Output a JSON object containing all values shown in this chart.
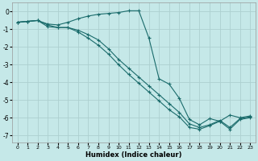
{
  "xlabel": "Humidex (Indice chaleur)",
  "bg_color": "#c5e8e8",
  "grid_color": "#add0d0",
  "line_color": "#1a6b6b",
  "xlim": [
    -0.5,
    23.5
  ],
  "ylim": [
    -7.4,
    0.5
  ],
  "xticks": [
    0,
    1,
    2,
    3,
    4,
    5,
    6,
    7,
    8,
    9,
    10,
    11,
    12,
    13,
    14,
    15,
    16,
    17,
    18,
    19,
    20,
    21,
    22,
    23
  ],
  "yticks": [
    0,
    -1,
    -2,
    -3,
    -4,
    -5,
    -6,
    -7
  ],
  "line1_x": [
    0,
    1,
    2,
    3,
    4,
    5,
    6,
    7,
    8,
    9,
    10,
    11,
    12,
    13,
    14,
    15,
    16,
    17,
    18,
    19,
    20,
    21,
    22,
    23
  ],
  "line1_y": [
    -0.6,
    -0.55,
    -0.5,
    -0.7,
    -0.75,
    -0.6,
    -0.4,
    -0.25,
    -0.15,
    -0.1,
    -0.05,
    0.05,
    0.05,
    -1.5,
    -3.8,
    -4.1,
    -4.9,
    -6.1,
    -6.4,
    -6.05,
    -6.2,
    -5.85,
    -6.0,
    -5.9
  ],
  "line2_x": [
    0,
    1,
    2,
    3,
    4,
    5,
    6,
    7,
    8,
    9,
    10,
    11,
    12,
    13,
    14,
    15,
    16,
    17,
    18,
    19,
    20,
    21,
    22,
    23
  ],
  "line2_y": [
    -0.6,
    -0.55,
    -0.5,
    -0.85,
    -0.9,
    -0.9,
    -1.05,
    -1.3,
    -1.6,
    -2.1,
    -2.7,
    -3.2,
    -3.7,
    -4.2,
    -4.7,
    -5.2,
    -5.7,
    -6.35,
    -6.55,
    -6.4,
    -6.15,
    -6.55,
    -6.05,
    -5.95
  ],
  "line3_x": [
    0,
    1,
    2,
    3,
    4,
    5,
    6,
    7,
    8,
    9,
    10,
    11,
    12,
    13,
    14,
    15,
    16,
    17,
    18,
    19,
    20,
    21,
    22,
    23
  ],
  "line3_y": [
    -0.6,
    -0.55,
    -0.5,
    -0.75,
    -0.9,
    -0.9,
    -1.15,
    -1.5,
    -1.9,
    -2.4,
    -3.0,
    -3.55,
    -4.05,
    -4.55,
    -5.05,
    -5.55,
    -5.95,
    -6.55,
    -6.65,
    -6.45,
    -6.2,
    -6.65,
    -6.1,
    -6.0
  ]
}
